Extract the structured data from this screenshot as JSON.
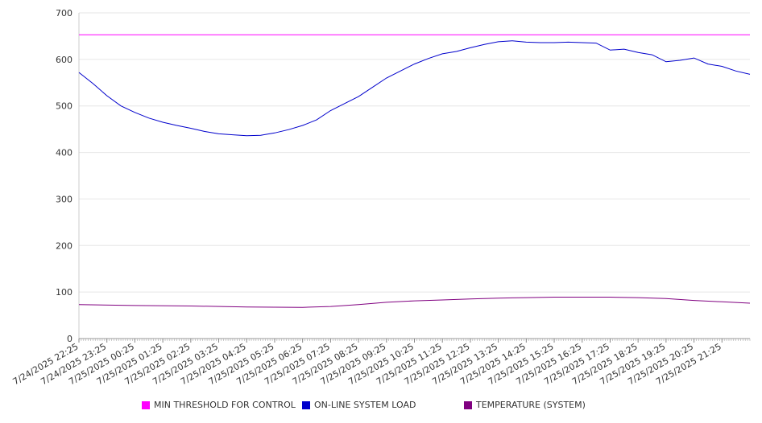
{
  "chart_data": {
    "type": "line",
    "ylim": [
      0,
      700
    ],
    "yticks": [
      0,
      100,
      200,
      300,
      400,
      500,
      600,
      700
    ],
    "grid": true,
    "legend_position": "bottom",
    "x_start": "7/24/2025 22:25",
    "x_end": "7/25/2025 22:25",
    "x_tick_labels": [
      "7/24/2025 22:25",
      "7/24/2025 23:25",
      "7/25/2025 00:25",
      "7/25/2025 01:25",
      "7/25/2025 02:25",
      "7/25/2025 03:25",
      "7/25/2025 04:25",
      "7/25/2025 05:25",
      "7/25/2025 06:25",
      "7/25/2025 07:25",
      "7/25/2025 08:25",
      "7/25/2025 09:25",
      "7/25/2025 10:25",
      "7/25/2025 11:25",
      "7/25/2025 12:25",
      "7/25/2025 13:25",
      "7/25/2025 14:25",
      "7/25/2025 15:25",
      "7/25/2025 16:25",
      "7/25/2025 17:25",
      "7/25/2025 18:25",
      "7/25/2025 19:25",
      "7/25/2025 20:25",
      "7/25/2025 21:25"
    ],
    "series": [
      {
        "name": "MIN THRESHOLD FOR CONTROL",
        "color": "#ff00ff",
        "x": [
          "7/24/2025 22:25",
          "7/25/2025 22:25"
        ],
        "values": [
          653,
          653
        ]
      },
      {
        "name": "ON-LINE SYSTEM LOAD",
        "color": "#0000cc",
        "x": [
          "7/24/2025 22:25",
          "7/24/2025 22:55",
          "7/24/2025 23:25",
          "7/24/2025 23:55",
          "7/25/2025 00:25",
          "7/25/2025 00:55",
          "7/25/2025 01:25",
          "7/25/2025 01:55",
          "7/25/2025 02:25",
          "7/25/2025 02:55",
          "7/25/2025 03:25",
          "7/25/2025 03:55",
          "7/25/2025 04:25",
          "7/25/2025 04:55",
          "7/25/2025 05:25",
          "7/25/2025 05:55",
          "7/25/2025 06:25",
          "7/25/2025 06:55",
          "7/25/2025 07:25",
          "7/25/2025 07:55",
          "7/25/2025 08:25",
          "7/25/2025 08:55",
          "7/25/2025 09:25",
          "7/25/2025 09:55",
          "7/25/2025 10:25",
          "7/25/2025 10:55",
          "7/25/2025 11:25",
          "7/25/2025 11:55",
          "7/25/2025 12:25",
          "7/25/2025 12:55",
          "7/25/2025 13:25",
          "7/25/2025 13:55",
          "7/25/2025 14:25",
          "7/25/2025 14:55",
          "7/25/2025 15:25",
          "7/25/2025 15:55",
          "7/25/2025 16:25",
          "7/25/2025 16:55",
          "7/25/2025 17:25",
          "7/25/2025 17:55",
          "7/25/2025 18:25",
          "7/25/2025 18:55",
          "7/25/2025 19:25",
          "7/25/2025 19:55",
          "7/25/2025 20:25",
          "7/25/2025 20:55",
          "7/25/2025 21:25",
          "7/25/2025 21:55",
          "7/25/2025 22:25"
        ],
        "values": [
          572,
          548,
          522,
          500,
          486,
          474,
          465,
          458,
          452,
          445,
          440,
          438,
          436,
          437,
          442,
          449,
          458,
          470,
          490,
          505,
          520,
          540,
          560,
          575,
          590,
          602,
          612,
          617,
          625,
          632,
          638,
          640,
          637,
          636,
          636,
          637,
          636,
          635,
          620,
          622,
          615,
          610,
          595,
          598,
          603,
          590,
          585,
          575,
          568
        ]
      },
      {
        "name": "TEMPERATURE (SYSTEM)",
        "color": "#800080",
        "x": [
          "7/24/2025 22:25",
          "7/25/2025 00:25",
          "7/25/2025 02:25",
          "7/25/2025 04:25",
          "7/25/2025 06:25",
          "7/25/2025 07:25",
          "7/25/2025 08:25",
          "7/25/2025 09:25",
          "7/25/2025 10:25",
          "7/25/2025 11:25",
          "7/25/2025 12:25",
          "7/25/2025 13:25",
          "7/25/2025 14:25",
          "7/25/2025 15:25",
          "7/25/2025 16:25",
          "7/25/2025 17:25",
          "7/25/2025 18:25",
          "7/25/2025 19:25",
          "7/25/2025 20:25",
          "7/25/2025 21:25",
          "7/25/2025 22:25"
        ],
        "values": [
          73,
          71,
          70,
          68,
          67,
          69,
          73,
          78,
          81,
          83,
          85,
          87,
          88,
          89,
          89,
          89,
          88,
          86,
          82,
          79,
          76
        ]
      }
    ]
  }
}
